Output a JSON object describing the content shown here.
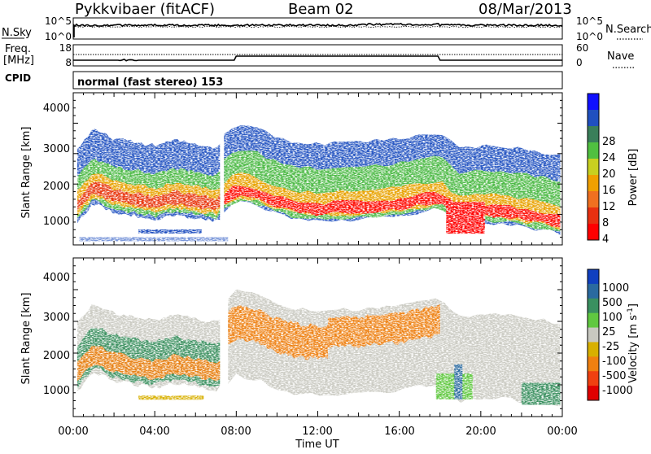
{
  "header": {
    "station": "Pykkvibaer (fitACF)",
    "beam": "Beam 02",
    "date": "08/Mar/2013"
  },
  "noise_panel": {
    "left_label": "N.Sky",
    "left_ticks": [
      "10^5",
      "10^0"
    ],
    "right_ticks": [
      "10^5",
      "10^0"
    ],
    "right_label": "N.Search",
    "legend_line_style": "dotted"
  },
  "freq_panel": {
    "left_label_1": "Freq.",
    "left_label_2": "[MHz]",
    "left_ticks": [
      "18",
      "8"
    ],
    "right_ticks": [
      "60",
      "0"
    ],
    "right_label": "Nave",
    "legend_line_style": "dotted"
  },
  "cpid_panel": {
    "label": "CPID",
    "mode_text": "normal (fast stereo) 153"
  },
  "power_panel": {
    "ylabel": "Slant Range [km]",
    "yticks": [
      "4000",
      "3000",
      "2000",
      "1000"
    ],
    "colorbar_label": "Power [dB]",
    "colorbar_ticks": [
      "28",
      "24",
      "20",
      "16",
      "12",
      "8",
      "4"
    ],
    "colors": [
      "#1010ff",
      "#2050c0",
      "#3a7f5a",
      "#50c040",
      "#c8d020",
      "#f0a000",
      "#f07020",
      "#e83010",
      "#ff0000"
    ]
  },
  "velocity_panel": {
    "ylabel": "Slant Range [km]",
    "yticks": [
      "4000",
      "3000",
      "2000",
      "1000"
    ],
    "colorbar_label": "Velocity [m s",
    "colorbar_label_sup": "-1",
    "colorbar_label_end": "]",
    "colorbar_ticks": [
      "1000",
      "500",
      "100",
      "25",
      "-25",
      "-100",
      "-500",
      "-1000"
    ],
    "colors": [
      "#1040c0",
      "#2a6aa0",
      "#3a9060",
      "#60c840",
      "#c8c8c0",
      "#d8b000",
      "#f08010",
      "#f04010",
      "#e00000"
    ]
  },
  "x_axis": {
    "ticks": [
      "00:00",
      "04:00",
      "08:00",
      "12:00",
      "16:00",
      "20:00",
      "00:00"
    ],
    "label": "Time UT"
  },
  "chart_data": {
    "type": "heatmap",
    "x_range_hours": [
      0,
      24
    ],
    "y_range_km": [
      180,
      4500
    ],
    "power_band_center_km": [
      [
        0,
        1100
      ],
      [
        1,
        1750
      ],
      [
        2,
        1500
      ],
      [
        3,
        1400
      ],
      [
        4,
        1300
      ],
      [
        5,
        1450
      ],
      [
        6,
        1350
      ],
      [
        7,
        1250
      ],
      [
        8,
        1700
      ],
      [
        9,
        1600
      ],
      [
        10,
        1350
      ],
      [
        11,
        1200
      ],
      [
        12,
        1150
      ],
      [
        13,
        1200
      ],
      [
        14,
        1200
      ],
      [
        15,
        1250
      ],
      [
        16,
        1300
      ],
      [
        17,
        1400
      ],
      [
        18,
        1500
      ],
      [
        19,
        1000
      ],
      [
        20,
        1100
      ],
      [
        21,
        1100
      ],
      [
        22,
        1000
      ],
      [
        23,
        900
      ],
      [
        24,
        800
      ]
    ],
    "frequency_step_times_hours": [
      8.0,
      18.0
    ]
  }
}
